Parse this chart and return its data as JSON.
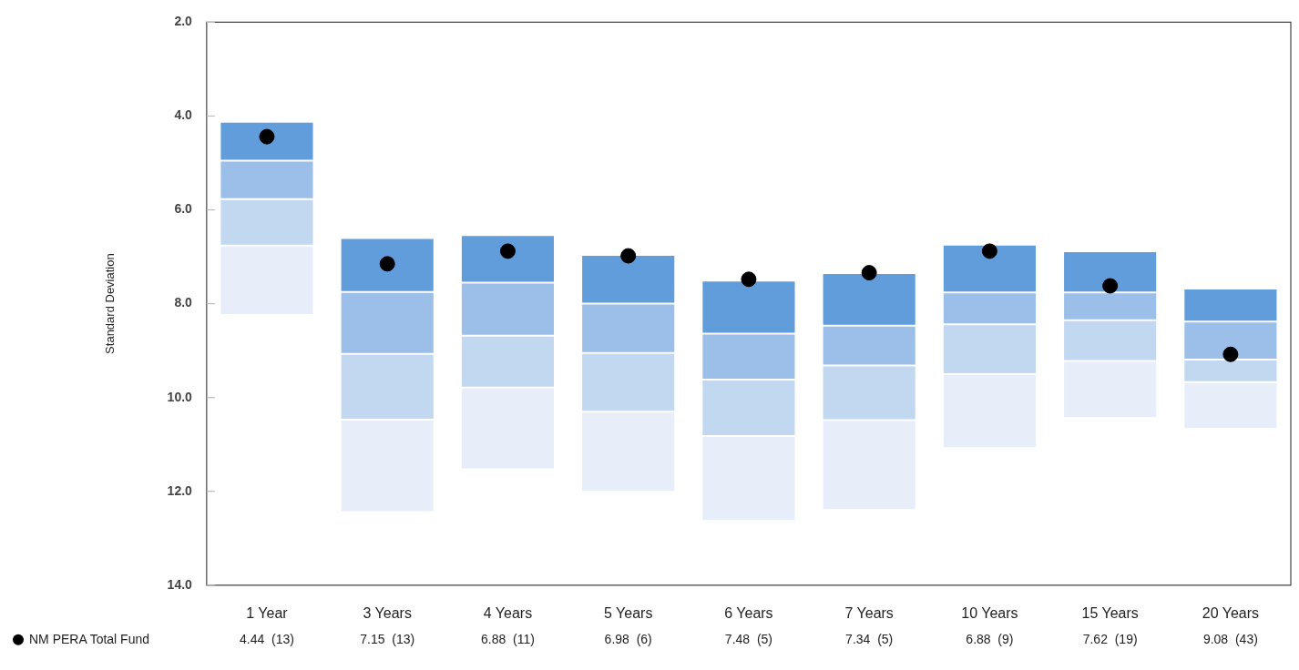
{
  "chart_data": {
    "type": "bar",
    "ylabel": "Standard Deviation",
    "categories": [
      "1 Year",
      "3 Years",
      "4 Years",
      "5 Years",
      "6 Years",
      "7 Years",
      "10 Years",
      "15 Years",
      "20 Years"
    ],
    "series": [
      {
        "color": "#629ddb",
        "base": [
          4.12,
          6.6,
          6.54,
          6.96,
          7.51,
          7.35,
          6.74,
          6.88,
          7.68
        ],
        "values": [
          0.83,
          1.15,
          1.01,
          1.04,
          1.13,
          1.12,
          1.02,
          0.88,
          0.7
        ]
      },
      {
        "color": "#9bbfe8",
        "base": [
          4.95,
          7.75,
          7.55,
          8.0,
          8.64,
          8.47,
          7.76,
          7.76,
          8.38
        ],
        "values": [
          0.82,
          1.32,
          1.13,
          1.05,
          0.98,
          0.85,
          0.68,
          0.59,
          0.81
        ]
      },
      {
        "color": "#c2d8f1",
        "base": [
          5.77,
          9.07,
          8.68,
          9.05,
          9.62,
          9.32,
          8.44,
          8.35,
          9.19
        ],
        "values": [
          0.99,
          1.4,
          1.11,
          1.25,
          1.2,
          1.16,
          1.06,
          0.87,
          0.48
        ]
      },
      {
        "color": "#e7eef9",
        "base": [
          6.76,
          10.47,
          9.79,
          10.3,
          10.82,
          10.48,
          9.5,
          9.22,
          9.67
        ],
        "values": [
          1.48,
          1.97,
          1.74,
          1.71,
          1.81,
          1.92,
          1.58,
          1.22,
          1.0
        ]
      },
      {
        "type": "scatter",
        "name": "NM PERA Total Fund",
        "color": "#000000",
        "marker": "circle",
        "values": [
          4.44,
          7.15,
          6.88,
          6.98,
          7.48,
          7.34,
          6.88,
          7.62,
          9.08
        ],
        "value_labels": [
          "4.44  (13)",
          "7.15  (13)",
          "6.88  (11)",
          "6.98  (6)",
          "7.48  (5)",
          "7.34  (5)",
          "6.88  (9)",
          "7.62  (19)",
          "9.08  (43)"
        ]
      }
    ],
    "ylim": [
      14,
      2
    ],
    "yticks": [
      {
        "value": 2,
        "label": "2.0"
      },
      {
        "value": 4,
        "label": "4.0"
      },
      {
        "value": 6,
        "label": "6.0"
      },
      {
        "value": 8,
        "label": "8.0"
      },
      {
        "value": 10,
        "label": "10.0"
      },
      {
        "value": 12,
        "label": "12.0"
      },
      {
        "value": 14,
        "label": "14.0"
      }
    ],
    "grid": false,
    "legend": "bottom left"
  }
}
